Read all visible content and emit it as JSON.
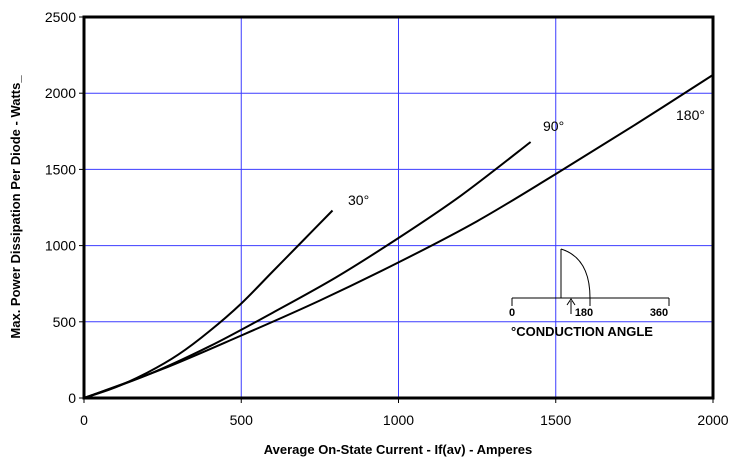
{
  "chart_data": {
    "type": "line",
    "xlabel": "Average On-State Current - If(av) - Amperes",
    "ylabel": "Max. Power Dissipation Per Diode - Watts_",
    "xlim": [
      0,
      2000
    ],
    "ylim": [
      0,
      2500
    ],
    "x_ticks": [
      "0",
      "500",
      "1000",
      "1500",
      "2000"
    ],
    "y_ticks": [
      "0",
      "500",
      "1000",
      "1500",
      "2000",
      "2500"
    ],
    "grid": true,
    "grid_color": "#3b3bff",
    "series": [
      {
        "name": "30°",
        "x": [
          0,
          100,
          200,
          300,
          400,
          500,
          600,
          700,
          790
        ],
        "y": [
          0,
          70,
          165,
          285,
          440,
          620,
          830,
          1040,
          1230
        ]
      },
      {
        "name": "90°",
        "x": [
          0,
          200,
          400,
          600,
          800,
          1000,
          1200,
          1420
        ],
        "y": [
          0,
          150,
          340,
          560,
          790,
          1050,
          1330,
          1680
        ]
      },
      {
        "name": "180°",
        "x": [
          0,
          250,
          500,
          750,
          1000,
          1250,
          1500,
          1750,
          2000
        ],
        "y": [
          0,
          190,
          410,
          640,
          890,
          1160,
          1470,
          1790,
          2120
        ]
      }
    ],
    "annotations": {
      "series_labels": [
        "30°",
        "90°",
        "180°"
      ],
      "inset_scale": [
        "0",
        "180",
        "360"
      ],
      "inset_title": "°CONDUCTION ANGLE"
    }
  }
}
